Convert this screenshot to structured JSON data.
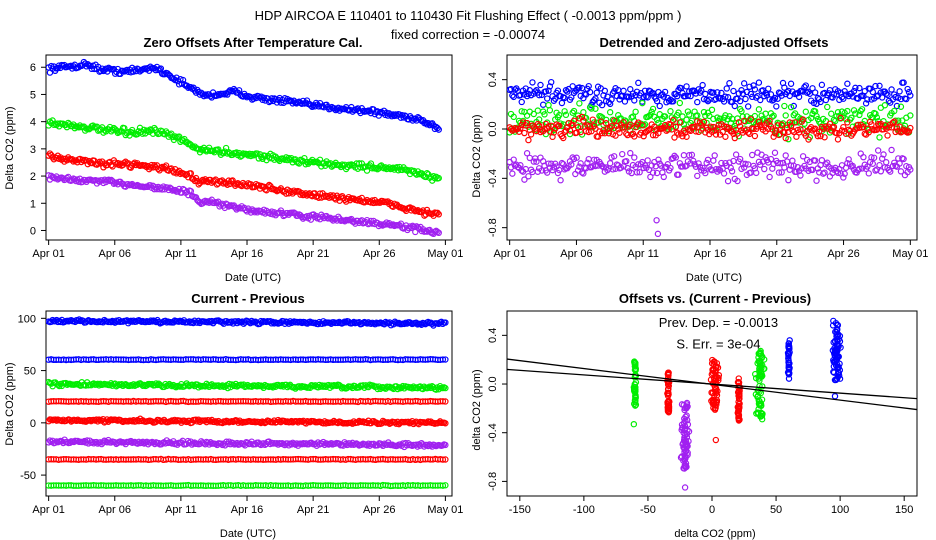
{
  "header": {
    "title": "HDP    AIRCOA E    110401 to 110430    Fit Flushing Effect ( -0.0013 ppm/ppm )",
    "subtitle": "fixed correction = -0.00074"
  },
  "colors": {
    "blue": "#0000ff",
    "green": "#00ee00",
    "red": "#ff0000",
    "purple": "#a020f0",
    "axis": "#000000"
  },
  "chart_data": [
    {
      "id": "zero-offsets",
      "type": "scatter",
      "title": "Zero Offsets After Temperature Cal.",
      "xlabel": "Date (UTC)",
      "ylabel": "Delta CO2 (ppm)",
      "xlim": [
        -0.2,
        30.5
      ],
      "ylim": [
        -0.35,
        6.45
      ],
      "x_ticks": [
        0,
        5,
        10,
        15,
        20,
        25,
        30
      ],
      "x_tick_labels": [
        "Apr 01",
        "Apr 06",
        "Apr 11",
        "Apr 16",
        "Apr 21",
        "Apr 26",
        "May 01"
      ],
      "y_ticks": [
        0,
        1,
        2,
        3,
        4,
        5,
        6
      ],
      "y_tick_labels": [
        "0",
        "1",
        "2",
        "3",
        "4",
        "5",
        "6"
      ],
      "series": [
        {
          "name": "blue",
          "color": "blue",
          "x": [
            0,
            2,
            3,
            4,
            6,
            7,
            8,
            9,
            10,
            11,
            12,
            14,
            16,
            18,
            20,
            22,
            24,
            26,
            28,
            29.5
          ],
          "y": [
            5.95,
            6.05,
            6.1,
            5.9,
            5.85,
            5.9,
            6.0,
            5.75,
            5.45,
            5.15,
            4.95,
            5.1,
            4.85,
            4.75,
            4.6,
            4.5,
            4.4,
            4.25,
            4.1,
            3.75
          ],
          "noise": 0.09
        },
        {
          "name": "green",
          "color": "green",
          "x": [
            0,
            2,
            4,
            6,
            8,
            10,
            11,
            12,
            14,
            16,
            18,
            20,
            22,
            24,
            26,
            28,
            29.5
          ],
          "y": [
            3.95,
            3.85,
            3.7,
            3.6,
            3.65,
            3.35,
            3.05,
            2.95,
            2.85,
            2.75,
            2.6,
            2.5,
            2.4,
            2.35,
            2.3,
            2.1,
            1.85
          ],
          "noise": 0.1
        },
        {
          "name": "red",
          "color": "red",
          "x": [
            0,
            2,
            4,
            6,
            8,
            10,
            10.8,
            11.3,
            12,
            14,
            16,
            18,
            20,
            22,
            24,
            26,
            28,
            29.5
          ],
          "y": [
            2.7,
            2.6,
            2.45,
            2.45,
            2.35,
            2.15,
            2.0,
            1.75,
            1.8,
            1.75,
            1.6,
            1.45,
            1.3,
            1.2,
            1.1,
            0.95,
            0.7,
            0.6
          ],
          "noise": 0.09
        },
        {
          "name": "purple",
          "color": "purple",
          "x": [
            0,
            2,
            4,
            6,
            8,
            10,
            10.8,
            11.5,
            12,
            14,
            16,
            18,
            20,
            22,
            24,
            26,
            28,
            29.5
          ],
          "y": [
            1.95,
            1.85,
            1.8,
            1.7,
            1.6,
            1.45,
            1.35,
            1.0,
            1.05,
            0.85,
            0.7,
            0.6,
            0.5,
            0.4,
            0.3,
            0.2,
            0.05,
            -0.1
          ],
          "noise": 0.08
        }
      ]
    },
    {
      "id": "detrended",
      "type": "scatter",
      "title": "Detrended and Zero-adjusted Offsets",
      "xlabel": "Date (UTC)",
      "ylabel": "Delta CO2 (ppm)",
      "xlim": [
        -0.2,
        30.5
      ],
      "ylim": [
        -0.9,
        0.6
      ],
      "x_ticks": [
        0,
        5,
        10,
        15,
        20,
        25,
        30
      ],
      "x_tick_labels": [
        "Apr 01",
        "Apr 06",
        "Apr 11",
        "Apr 16",
        "Apr 21",
        "Apr 26",
        "May 01"
      ],
      "y_ticks": [
        -0.8,
        -0.4,
        0.0,
        0.4
      ],
      "y_tick_labels": [
        "-0.8",
        "-0.4",
        "0.0",
        "0.4"
      ],
      "series": [
        {
          "name": "blue",
          "color": "blue",
          "x": [
            0,
            30
          ],
          "y": [
            0.28,
            0.28
          ],
          "noise": 0.07
        },
        {
          "name": "green",
          "color": "green",
          "x": [
            0,
            30
          ],
          "y": [
            0.07,
            0.07
          ],
          "noise": 0.09
        },
        {
          "name": "red",
          "color": "red",
          "x": [
            0,
            30
          ],
          "y": [
            0.0,
            0.0
          ],
          "noise": 0.06
        },
        {
          "name": "purple",
          "color": "purple",
          "x": [
            0,
            30
          ],
          "y": [
            -0.3,
            -0.3
          ],
          "noise": 0.08
        }
      ],
      "outliers": {
        "color": "purple",
        "x": [
          11.0,
          11.1
        ],
        "y": [
          -0.74,
          -0.85
        ]
      }
    },
    {
      "id": "current-previous",
      "type": "scatter",
      "title": "Current - Previous",
      "xlabel": "Date (UTC)",
      "ylabel": "Delta CO2 (ppm)",
      "xlim": [
        -0.2,
        30.5
      ],
      "ylim": [
        -70,
        107
      ],
      "x_ticks": [
        0,
        5,
        10,
        15,
        20,
        25,
        30
      ],
      "x_tick_labels": [
        "Apr 01",
        "Apr 06",
        "Apr 11",
        "Apr 16",
        "Apr 21",
        "Apr 26",
        "May 01"
      ],
      "y_ticks": [
        -50,
        0,
        50,
        100
      ],
      "y_tick_labels": [
        "-50",
        "0",
        "50",
        "100"
      ],
      "series": [
        {
          "name": "blue",
          "color": "blue",
          "x": [
            0,
            30
          ],
          "y": [
            97.5,
            95
          ],
          "noise": 1.2
        },
        {
          "name": "blue-flat",
          "color": "blue",
          "x": [
            0,
            30
          ],
          "y": [
            60.5,
            60.5
          ],
          "noise": 0.3
        },
        {
          "name": "green",
          "color": "green",
          "x": [
            0,
            30
          ],
          "y": [
            37,
            33.5
          ],
          "noise": 1.5
        },
        {
          "name": "red-flat",
          "color": "red",
          "x": [
            0,
            30
          ],
          "y": [
            20.5,
            20.5
          ],
          "noise": 0.3
        },
        {
          "name": "red",
          "color": "red",
          "x": [
            0,
            30
          ],
          "y": [
            2.5,
            0
          ],
          "noise": 1.2
        },
        {
          "name": "purple",
          "color": "purple",
          "x": [
            0,
            30
          ],
          "y": [
            -18,
            -21.5
          ],
          "noise": 1.5
        },
        {
          "name": "red-flat-neg",
          "color": "red",
          "x": [
            0,
            30
          ],
          "y": [
            -35,
            -35
          ],
          "noise": 0.3
        },
        {
          "name": "green-flat",
          "color": "green",
          "x": [
            0,
            30
          ],
          "y": [
            -60,
            -60
          ],
          "noise": 0.3
        }
      ]
    },
    {
      "id": "offsets-vs-diff",
      "type": "scatter",
      "title": "Offsets vs. (Current - Previous)",
      "xlabel": "delta CO2 (ppm)",
      "ylabel": "delta CO2 (ppm)",
      "xlim": [
        -160,
        160
      ],
      "ylim": [
        -0.92,
        0.6
      ],
      "x_ticks": [
        -150,
        -100,
        -50,
        0,
        50,
        100,
        150
      ],
      "x_tick_labels": [
        "-150",
        "-100",
        "-50",
        "0",
        "50",
        "100",
        "150"
      ],
      "y_ticks": [
        -0.8,
        -0.4,
        0.0,
        0.4
      ],
      "y_tick_labels": [
        "-0.8",
        "-0.4",
        "0.0",
        "0.4"
      ],
      "annotations": [
        {
          "text": "Prev. Dep. = -0.0013",
          "x": 5,
          "y": 0.47
        },
        {
          "text": "S. Err. = 3e-04",
          "x": 5,
          "y": 0.29
        }
      ],
      "fit_lines": [
        {
          "name": "fit-1",
          "x": [
            -160,
            160
          ],
          "y": [
            0.205,
            -0.21
          ]
        },
        {
          "name": "fit-2",
          "x": [
            -160,
            160
          ],
          "y": [
            0.12,
            -0.12
          ]
        }
      ],
      "clusters": [
        {
          "color": "green",
          "x": -60,
          "y": [
            -0.18,
            0.2
          ],
          "points": 45,
          "spread": 0.8
        },
        {
          "color": "red",
          "x": -34,
          "y": [
            -0.25,
            0.1
          ],
          "points": 45,
          "spread": 0.8
        },
        {
          "color": "purple",
          "x": -21,
          "y": [
            -0.72,
            -0.15
          ],
          "points": 70,
          "spread": 2.5
        },
        {
          "color": "red",
          "x": 2,
          "y": [
            -0.22,
            0.2
          ],
          "points": 60,
          "spread": 3.0
        },
        {
          "color": "red",
          "x": 21,
          "y": [
            -0.3,
            0.05
          ],
          "points": 45,
          "spread": 0.8
        },
        {
          "color": "green",
          "x": 37,
          "y": [
            -0.3,
            0.28
          ],
          "points": 70,
          "spread": 3.0
        },
        {
          "color": "blue",
          "x": 60,
          "y": [
            0.03,
            0.36
          ],
          "points": 35,
          "spread": 0.6
        },
        {
          "color": "blue",
          "x": 97,
          "y": [
            0.03,
            0.52
          ],
          "points": 70,
          "spread": 2.5
        }
      ],
      "outliers": [
        {
          "color": "red",
          "x": 3,
          "y": -0.46
        },
        {
          "color": "purple",
          "x": -21,
          "y": -0.85
        },
        {
          "color": "green",
          "x": -61,
          "y": -0.33
        },
        {
          "color": "blue",
          "x": 96,
          "y": -0.1
        }
      ]
    }
  ]
}
